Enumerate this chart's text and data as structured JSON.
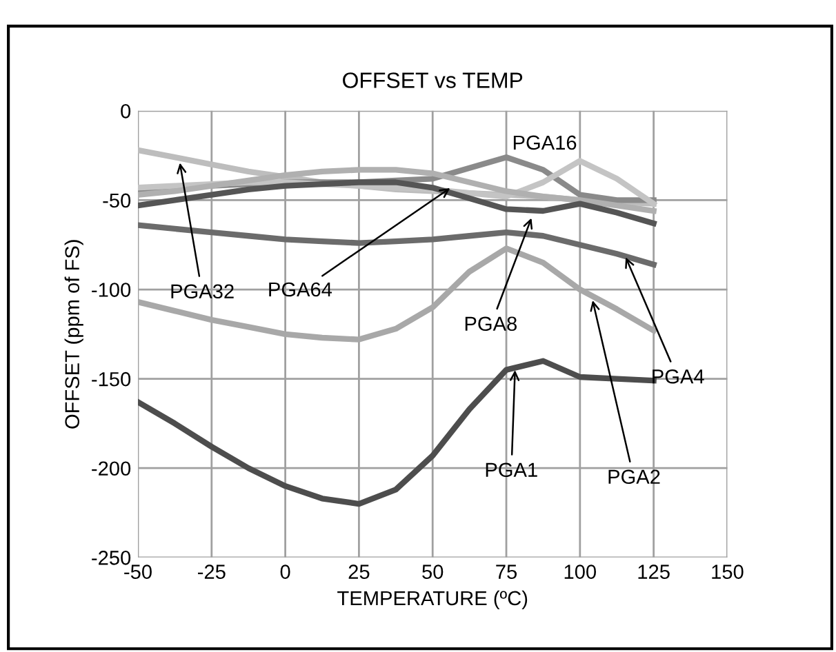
{
  "chart_data": {
    "type": "line",
    "title": "OFFSET vs TEMP",
    "xlabel": "TEMPERATURE (ºC)",
    "ylabel": "OFFSET (ppm of FS)",
    "x": [
      -50,
      -37.5,
      -25,
      -12.5,
      0,
      12.5,
      25,
      37.5,
      50,
      62.5,
      75,
      87.5,
      100,
      112.5,
      125
    ],
    "series": [
      {
        "color": "#bdbdbd",
        "values": [
          -22,
          -26,
          -30,
          -34,
          -37,
          -40,
          -42,
          -44,
          -45,
          -46,
          -47,
          -48,
          -50,
          -51,
          -52
        ]
      },
      {
        "color": "#8a8a8a",
        "values": [
          -45,
          -43,
          -42,
          -41,
          -40,
          -40,
          -40,
          -39,
          -38,
          -32,
          -26,
          -33,
          -47,
          -50,
          -50
        ]
      },
      {
        "color": "#c4c4c4",
        "values": [
          -43,
          -42,
          -41,
          -40,
          -40,
          -41,
          -42,
          -43,
          -44,
          -46,
          -48,
          -40,
          -28,
          -38,
          -52
        ]
      },
      {
        "color": "#b0b0b0",
        "values": [
          -47,
          -45,
          -42,
          -39,
          -36,
          -34,
          -33,
          -33,
          -35,
          -40,
          -45,
          -48,
          -50,
          -53,
          -56
        ]
      },
      {
        "color": "#555555",
        "values": [
          -53,
          -50,
          -47,
          -44,
          -42,
          -41,
          -40,
          -40,
          -43,
          -49,
          -55,
          -56,
          -52,
          -57,
          -63
        ]
      },
      {
        "color": "#6b6b6b",
        "values": [
          -64,
          -66,
          -68,
          -70,
          -72,
          -73,
          -74,
          -73,
          -72,
          -70,
          -68,
          -70,
          -75,
          -80,
          -86
        ]
      },
      {
        "color": "#a8a8a8",
        "values": [
          -107,
          -112,
          -117,
          -121,
          -125,
          -127,
          -128,
          -122,
          -110,
          -90,
          -77,
          -85,
          -100,
          -111,
          -123
        ]
      },
      {
        "color": "#4d4d4d",
        "values": [
          -163,
          -175,
          -188,
          -200,
          -210,
          -217,
          -220,
          -212,
          -193,
          -167,
          -145,
          -140,
          -149,
          -150,
          -151
        ]
      }
    ],
    "annotations": [
      {
        "text": "PGA32",
        "x": -36,
        "y": -27
      },
      {
        "text": "PGA64",
        "x": 57,
        "y": -42
      },
      "PGA16",
      {
        "text": "PGA8",
        "x": 84,
        "y": -58
      },
      {
        "text": "PGA1",
        "x": 78,
        "y": -143
      },
      {
        "text": "PGA2",
        "x": 104,
        "y": -104
      },
      {
        "text": "PGA4",
        "x": 115,
        "y": -80
      }
    ],
    "xlim": [
      -50,
      150
    ],
    "xticks": [
      -50,
      -25,
      0,
      25,
      50,
      75,
      100,
      125,
      150
    ],
    "ylim": [
      -250,
      0
    ],
    "yticks": [
      -250,
      -200,
      -150,
      -100,
      -50,
      0
    ],
    "grid": true,
    "legend": false,
    "marker": "none",
    "line_style": "solid"
  }
}
